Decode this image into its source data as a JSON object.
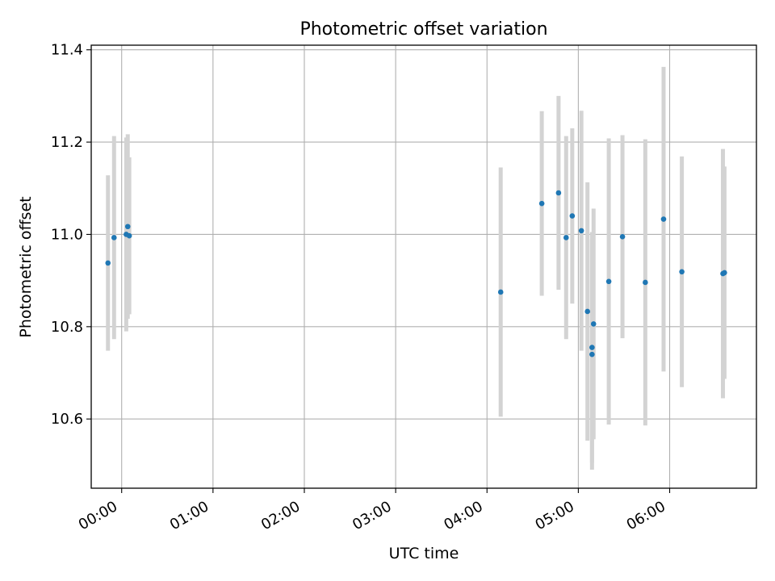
{
  "chart_data": {
    "type": "scatter",
    "title": "Photometric offset variation",
    "xlabel": "UTC time",
    "ylabel": "Photometric offset",
    "x_ticks": [
      "00:00",
      "01:00",
      "02:00",
      "03:00",
      "04:00",
      "05:00",
      "06:00"
    ],
    "y_ticks": [
      "10.6",
      "10.8",
      "11.0",
      "11.2",
      "11.4"
    ],
    "xlim": [
      "-00:20",
      "06:57"
    ],
    "ylim": [
      10.45,
      11.41
    ],
    "grid": true,
    "series": [
      {
        "marker_color": "#1f77b4",
        "errorbar_color": "#d3d3d3",
        "points": [
          {
            "x": "23:51",
            "y": 10.938,
            "yerr": 0.19
          },
          {
            "x": "23:55",
            "y": 10.993,
            "yerr": 0.22
          },
          {
            "x": "00:03",
            "y": 11.0,
            "yerr": 0.21
          },
          {
            "x": "00:04",
            "y": 11.017,
            "yerr": 0.2
          },
          {
            "x": "00:05",
            "y": 10.997,
            "yerr": 0.17
          },
          {
            "x": "04:09",
            "y": 10.875,
            "yerr": 0.27
          },
          {
            "x": "04:36",
            "y": 11.067,
            "yerr": 0.2
          },
          {
            "x": "04:47",
            "y": 11.09,
            "yerr": 0.21
          },
          {
            "x": "04:52",
            "y": 10.993,
            "yerr": 0.22
          },
          {
            "x": "04:56",
            "y": 11.04,
            "yerr": 0.19
          },
          {
            "x": "05:02",
            "y": 11.008,
            "yerr": 0.26
          },
          {
            "x": "05:06",
            "y": 10.833,
            "yerr": 0.28
          },
          {
            "x": "05:09",
            "y": 10.74,
            "yerr": 0.25
          },
          {
            "x": "05:09",
            "y": 10.755,
            "yerr": 0.25
          },
          {
            "x": "05:10",
            "y": 10.806,
            "yerr": 0.25
          },
          {
            "x": "05:20",
            "y": 10.898,
            "yerr": 0.31
          },
          {
            "x": "05:29",
            "y": 10.995,
            "yerr": 0.22
          },
          {
            "x": "05:44",
            "y": 10.896,
            "yerr": 0.31
          },
          {
            "x": "05:56",
            "y": 11.033,
            "yerr": 0.33
          },
          {
            "x": "06:08",
            "y": 10.919,
            "yerr": 0.25
          },
          {
            "x": "06:35",
            "y": 10.915,
            "yerr": 0.27
          },
          {
            "x": "06:36",
            "y": 10.917,
            "yerr": 0.23
          }
        ]
      }
    ]
  }
}
